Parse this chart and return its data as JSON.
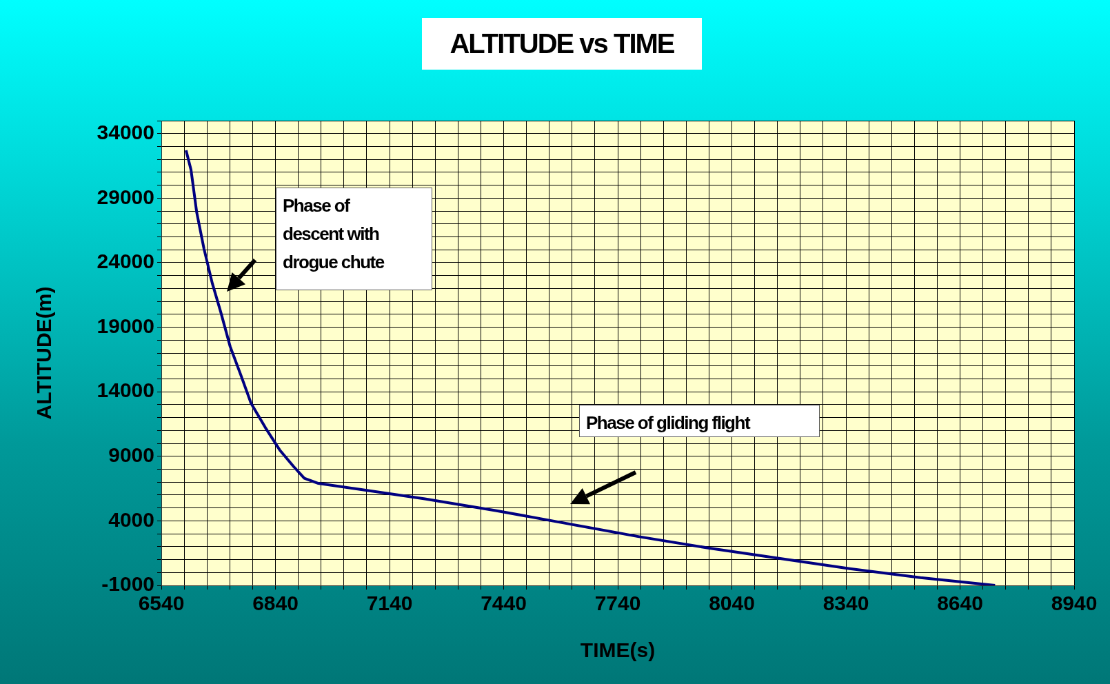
{
  "chart_data": {
    "type": "line",
    "title": "ALTITUDE vs TIME",
    "xlabel": "TIME(s)",
    "ylabel": "ALTITUDE(m)",
    "annotations": [
      "Phase of descent with drogue chute",
      "Phase of gliding flight"
    ],
    "grid": true,
    "marker": "none",
    "line_style": "solid",
    "xlim": [
      6540,
      8940
    ],
    "ylim": [
      -1000,
      35000
    ],
    "xticks": [
      6540,
      {
        "value": 6600,
        "label": null
      },
      {
        "value": 6660,
        "label": null
      },
      {
        "value": 6720,
        "label": null
      },
      {
        "value": 6780,
        "label": null
      },
      6840,
      {
        "value": 6900,
        "label": null
      },
      {
        "value": 6960,
        "label": null
      },
      {
        "value": 7020,
        "label": null
      },
      {
        "value": 7080,
        "label": null
      },
      7140,
      {
        "value": 7200,
        "label": null
      },
      {
        "value": 7260,
        "label": null
      },
      {
        "value": 7320,
        "label": null
      },
      {
        "value": 7380,
        "label": null
      },
      7440,
      {
        "value": 7500,
        "label": null
      },
      {
        "value": 7560,
        "label": null
      },
      {
        "value": 7620,
        "label": null
      },
      {
        "value": 7680,
        "label": null
      },
      7740,
      {
        "value": 7800,
        "label": null
      },
      {
        "value": 7860,
        "label": null
      },
      {
        "value": 7920,
        "label": null
      },
      {
        "value": 7980,
        "label": null
      },
      8040,
      {
        "value": 8100,
        "label": null
      },
      {
        "value": 8160,
        "label": null
      },
      {
        "value": 8220,
        "label": null
      },
      {
        "value": 8280,
        "label": null
      },
      8340,
      {
        "value": 8400,
        "label": null
      },
      {
        "value": 8460,
        "label": null
      },
      {
        "value": 8520,
        "label": null
      },
      {
        "value": 8580,
        "label": null
      },
      8640,
      {
        "value": 8700,
        "label": null
      },
      {
        "value": 8760,
        "label": null
      },
      {
        "value": 8820,
        "label": null
      },
      {
        "value": 8880,
        "label": null
      },
      8940
    ],
    "yticks": [
      -1000,
      {
        "value": 0,
        "label": null
      },
      {
        "value": 1000,
        "label": null
      },
      {
        "value": 2000,
        "label": null
      },
      {
        "value": 3000,
        "label": null
      },
      4000,
      {
        "value": 5000,
        "label": null
      },
      {
        "value": 6000,
        "label": null
      },
      {
        "value": 7000,
        "label": null
      },
      {
        "value": 8000,
        "label": null
      },
      9000,
      {
        "value": 10000,
        "label": null
      },
      {
        "value": 11000,
        "label": null
      },
      {
        "value": 12000,
        "label": null
      },
      {
        "value": 13000,
        "label": null
      },
      14000,
      {
        "value": 15000,
        "label": null
      },
      {
        "value": 16000,
        "label": null
      },
      {
        "value": 17000,
        "label": null
      },
      {
        "value": 18000,
        "label": null
      },
      19000,
      {
        "value": 20000,
        "label": null
      },
      {
        "value": 21000,
        "label": null
      },
      {
        "value": 22000,
        "label": null
      },
      {
        "value": 23000,
        "label": null
      },
      24000,
      {
        "value": 25000,
        "label": null
      },
      {
        "value": 26000,
        "label": null
      },
      {
        "value": 27000,
        "label": null
      },
      {
        "value": 28000,
        "label": null
      },
      29000,
      {
        "value": 30000,
        "label": null
      },
      {
        "value": 31000,
        "label": null
      },
      {
        "value": 32000,
        "label": null
      },
      {
        "value": 33000,
        "label": null
      },
      34000,
      {
        "value": 35000,
        "label": null
      }
    ],
    "series": [
      {
        "color": "#000080",
        "x": [
          6605,
          6618,
          6633,
          6652,
          6674,
          6696,
          6721,
          6749,
          6776,
          6814,
          6851,
          6888,
          6916,
          6953,
          7047,
          7233,
          7419,
          7605,
          7791,
          7978,
          8164,
          8350,
          8536,
          8732
        ],
        "values": [
          32700,
          31200,
          27900,
          25100,
          22400,
          20200,
          17500,
          15300,
          13100,
          11200,
          9500,
          8200,
          7300,
          6900,
          6500,
          5700,
          4800,
          3800,
          2800,
          1900,
          1100,
          300,
          -400,
          -1000
        ]
      }
    ]
  }
}
